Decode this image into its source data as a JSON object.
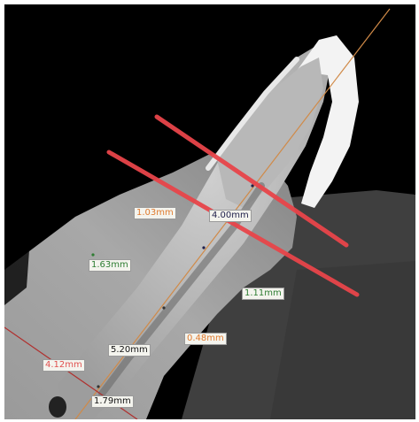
{
  "viewer": {
    "measurements": [
      {
        "id": "m-1-03",
        "text": "1.03mm",
        "color": "#e07b2f"
      },
      {
        "id": "m-4-00",
        "text": "4.00mm",
        "color": "#1f1f4a"
      },
      {
        "id": "m-1-63",
        "text": "1.63mm",
        "color": "#2e7d32"
      },
      {
        "id": "m-1-11",
        "text": "1.11mm",
        "color": "#2e7d32"
      },
      {
        "id": "m-5-20",
        "text": "5.20mm",
        "color": "#111111"
      },
      {
        "id": "m-0-48",
        "text": "0.48mm",
        "color": "#e07b2f"
      },
      {
        "id": "m-4-12",
        "text": "4.12mm",
        "color": "#e0514f"
      },
      {
        "id": "m-1-79",
        "text": "1.79mm",
        "color": "#111111"
      }
    ],
    "colors": {
      "cut_lines": "#e8454a",
      "axis_line": "#d08a48",
      "reference_line": "#b0302e",
      "background": "#000000",
      "tooth": "#c8c8c8",
      "bone": "#8a8a8a"
    }
  }
}
